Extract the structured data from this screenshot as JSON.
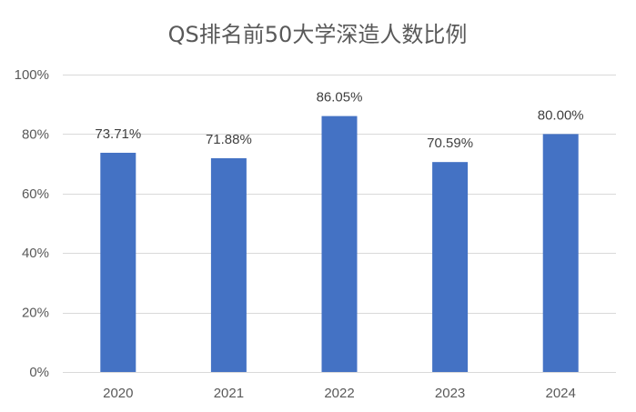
{
  "chart_data": {
    "type": "bar",
    "title": "QS排名前50大学深造人数比例",
    "xlabel": "",
    "ylabel": "",
    "categories": [
      "2020",
      "2021",
      "2022",
      "2023",
      "2024"
    ],
    "values": [
      73.71,
      71.88,
      86.05,
      70.59,
      80.0
    ],
    "value_labels": [
      "73.71%",
      "71.88%",
      "86.05%",
      "70.59%",
      "80.00%"
    ],
    "ylim": [
      0,
      100
    ],
    "y_ticks": [
      0,
      20,
      40,
      60,
      80,
      100
    ],
    "y_tick_labels": [
      "0%",
      "20%",
      "40%",
      "60%",
      "80%",
      "100%"
    ],
    "grid": true,
    "legend": "none",
    "colors": {
      "bar": "#4472C4",
      "grid": "#D9D9D9",
      "text": "#595959"
    }
  }
}
